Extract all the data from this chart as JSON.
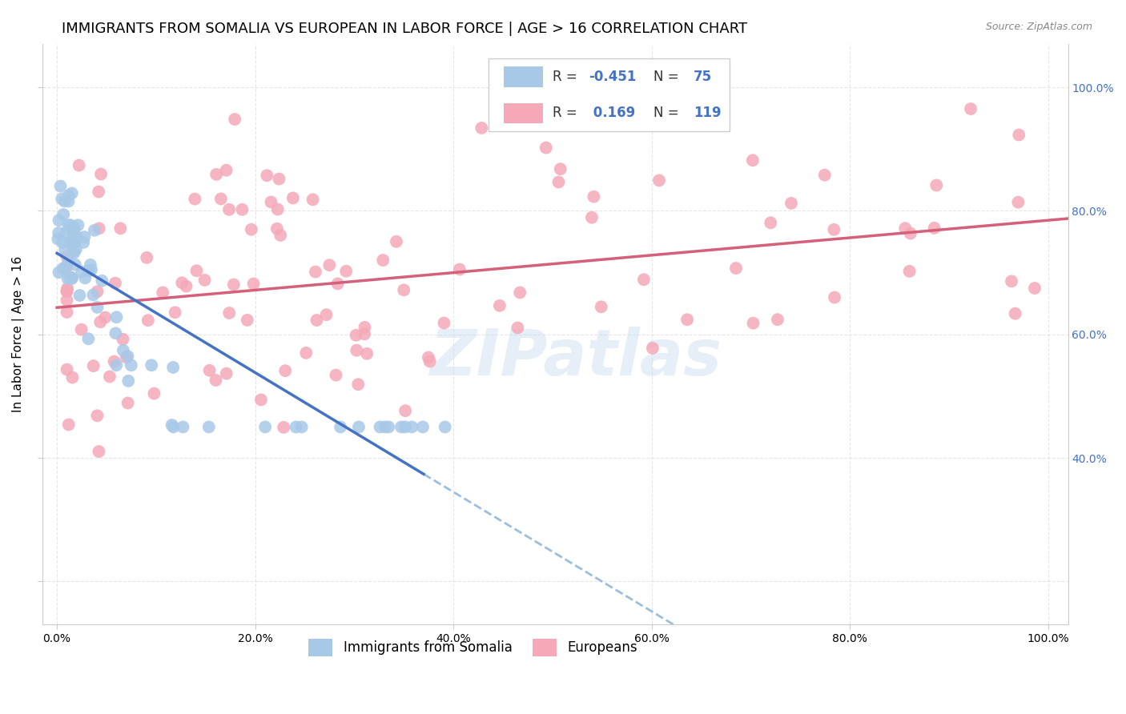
{
  "title": "IMMIGRANTS FROM SOMALIA VS EUROPEAN IN LABOR FORCE | AGE > 16 CORRELATION CHART",
  "source": "Source: ZipAtlas.com",
  "ylabel": "In Labor Force | Age > 16",
  "somalia_color": "#a8c8e8",
  "european_color": "#f5a8b8",
  "somalia_R": -0.451,
  "somalia_N": 75,
  "european_R": 0.169,
  "european_N": 119,
  "somalia_line_color": "#4472c4",
  "european_line_color": "#d4607a",
  "dashed_line_color": "#90b8d8",
  "background_color": "#ffffff",
  "grid_color": "#e0e0e0",
  "title_fontsize": 13,
  "label_fontsize": 11,
  "tick_fontsize": 10,
  "legend_fontsize": 12,
  "right_tick_color": "#4472c4",
  "watermark_color": "#c8ddf0",
  "watermark_alpha": 0.45
}
